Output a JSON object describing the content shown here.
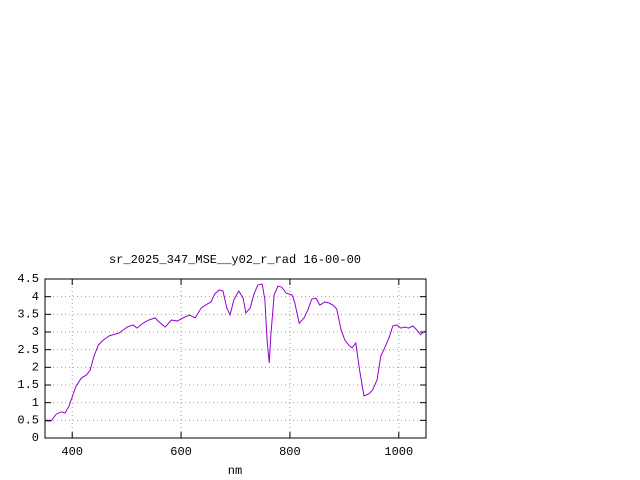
{
  "chart_data": {
    "type": "line",
    "title": "sr_2025_347_MSE__y02_r_rad 16-00-00",
    "x_label": "nm",
    "x": [
      350,
      361,
      371,
      380,
      387,
      394,
      400,
      407,
      417,
      426,
      433,
      440,
      448,
      457,
      468,
      479,
      486,
      494,
      501,
      512,
      519,
      530,
      541,
      552,
      560,
      571,
      582,
      593,
      604,
      615,
      626,
      637,
      648,
      655,
      662,
      670,
      677,
      684,
      690,
      697,
      706,
      714,
      719,
      727,
      734,
      741,
      749,
      754,
      758,
      762,
      765,
      771,
      778,
      785,
      793,
      804,
      809,
      817,
      826,
      833,
      840,
      848,
      855,
      864,
      872,
      879,
      886,
      894,
      901,
      908,
      914,
      921,
      928,
      936,
      945,
      952,
      960,
      967,
      974,
      982,
      989,
      996,
      1004,
      1011,
      1018,
      1026,
      1033,
      1040,
      1048
    ],
    "values": [
      0.48,
      0.48,
      0.68,
      0.74,
      0.71,
      0.9,
      1.16,
      1.47,
      1.7,
      1.78,
      1.92,
      2.32,
      2.63,
      2.77,
      2.89,
      2.94,
      2.97,
      3.06,
      3.14,
      3.2,
      3.11,
      3.25,
      3.34,
      3.4,
      3.28,
      3.14,
      3.34,
      3.31,
      3.4,
      3.48,
      3.4,
      3.68,
      3.79,
      3.85,
      4.08,
      4.19,
      4.16,
      3.68,
      3.48,
      3.91,
      4.16,
      3.96,
      3.54,
      3.68,
      4.08,
      4.33,
      4.36,
      3.91,
      2.77,
      2.12,
      2.92,
      4.05,
      4.3,
      4.27,
      4.1,
      4.05,
      3.82,
      3.25,
      3.4,
      3.62,
      3.93,
      3.96,
      3.76,
      3.85,
      3.82,
      3.76,
      3.65,
      3.06,
      2.77,
      2.63,
      2.55,
      2.69,
      1.92,
      1.19,
      1.25,
      1.36,
      1.64,
      2.32,
      2.55,
      2.83,
      3.17,
      3.2,
      3.11,
      3.14,
      3.11,
      3.17,
      3.06,
      2.92,
      3.03
    ],
    "color": "#9400d3",
    "xlim": [
      350,
      1050
    ],
    "xticks": [
      400,
      600,
      800,
      1000
    ],
    "ylim": [
      0,
      4.5
    ],
    "yticks": [
      0,
      0.5,
      1,
      1.5,
      2,
      2.5,
      3,
      3.5,
      4,
      4.5
    ],
    "grid": true
  }
}
